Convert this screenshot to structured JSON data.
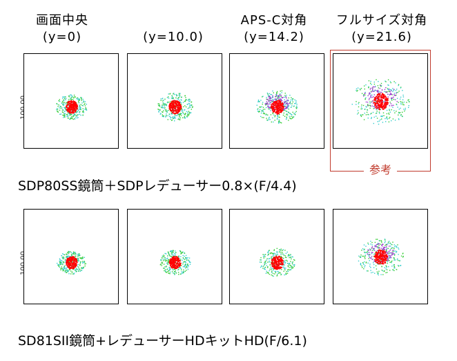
{
  "columns": [
    {
      "title": "画面中央",
      "sub": "(y=0)"
    },
    {
      "title": "",
      "sub": "(y=10.0)"
    },
    {
      "title": "APS-C対角",
      "sub": "(y=14.2)"
    },
    {
      "title": "フルサイズ対角",
      "sub": "(y=21.6)"
    }
  ],
  "rows": [
    {
      "caption": "SDP80SS鏡筒＋SDPレデューサー0.8×(F/4.4)",
      "axis_label": "100.00",
      "spread": [
        0.35,
        0.45,
        0.6,
        1.0
      ]
    },
    {
      "caption": "SD81SII鏡筒+レデューサーHDキットHD(F/6.1)",
      "axis_label": "100.00",
      "spread": [
        0.3,
        0.35,
        0.45,
        0.7
      ]
    }
  ],
  "reference_label": "参考",
  "colors": {
    "core": "#ff0000",
    "mid": "#33cc33",
    "outer": "#33cccc",
    "violet": "#9933cc",
    "frame": "#c0392b"
  }
}
